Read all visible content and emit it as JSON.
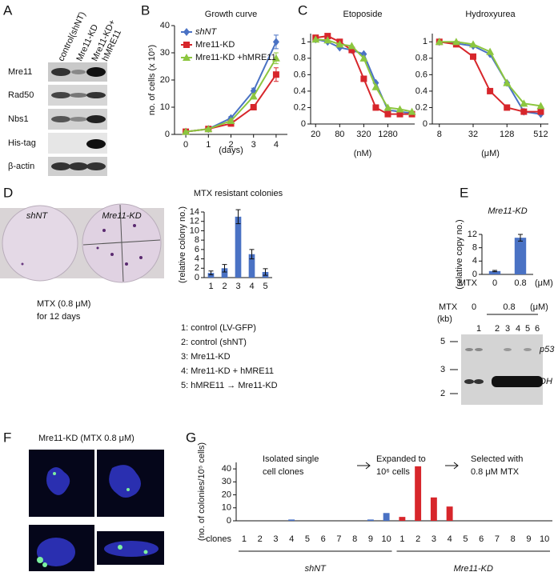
{
  "panels": [
    "A",
    "B",
    "C",
    "D",
    "E",
    "F",
    "G"
  ],
  "blot_a": {
    "columns": [
      "control(shNT)",
      "Mre11-KD",
      [
        "Mre11-KD+",
        "hMRE11"
      ]
    ],
    "rows": [
      "Mre11",
      "Rad50",
      "Nbs1",
      "His-tag",
      "β-actin"
    ]
  },
  "plates": {
    "labels": [
      "shNT",
      "Mre11-KD"
    ],
    "condition": "MTX (0.8 μM)",
    "duration": "for 12 days"
  },
  "legend_d": [
    "1: control (LV-GFP)",
    "2: control (shNT)",
    "3: Mre11-KD",
    "4: Mre11-KD + hMRE11",
    "5: hMRE11 → Mre11-KD"
  ],
  "blot_e": {
    "treatment_label": "MTX",
    "doses": [
      "0",
      "0.8"
    ],
    "unit": "(μM)",
    "size_unit": "(kb)",
    "lanes": [
      "1",
      "2",
      "3",
      "4",
      "5",
      "6"
    ],
    "sizes": [
      5,
      3,
      2
    ],
    "bands": [
      "p53",
      "DH"
    ]
  },
  "panel_f": {
    "title": "Mre11-KD (MTX 0.8 μM)"
  },
  "panel_g": {
    "steps": [
      [
        "Isolated single",
        "cell clones"
      ],
      [
        "Expanded to",
        "10⁶ cells"
      ],
      [
        "Selected with",
        "0.8 μM MTX"
      ]
    ]
  },
  "chart_data": [
    {
      "type": "line",
      "title": "Growth curve",
      "xlabel": "(days)",
      "ylabel": "no. of cells (x 10⁵)",
      "x": [
        0,
        1,
        2,
        3,
        4
      ],
      "xlim": [
        -0.5,
        4.5
      ],
      "xticks": [
        0,
        1,
        2,
        3,
        4
      ],
      "ylim": [
        0,
        40
      ],
      "yticks": [
        0,
        10,
        20,
        30,
        40
      ],
      "legend": "upper left",
      "series": [
        {
          "name": "shNT",
          "color": "#4a72c4",
          "marker": "diamond",
          "values": [
            1,
            2,
            6,
            16,
            34
          ],
          "errors": [
            0.3,
            0.3,
            0.6,
            1,
            2.5
          ]
        },
        {
          "name": "Mre11-KD",
          "color": "#d7262b",
          "marker": "square",
          "values": [
            1,
            2,
            4,
            10,
            22
          ],
          "errors": [
            0.3,
            0.3,
            0.5,
            1,
            2.5
          ]
        },
        {
          "name": "Mre11-KD +hMRE11",
          "color": "#8cc63f",
          "marker": "triangle",
          "values": [
            1,
            2,
            5,
            14,
            28
          ],
          "errors": [
            0.3,
            0.3,
            0.5,
            1,
            2
          ]
        }
      ]
    },
    {
      "type": "line",
      "title": "Etoposide",
      "xlabel": "(nM)",
      "log_x": true,
      "x": [
        20,
        40,
        80,
        160,
        320,
        640,
        1280,
        2560,
        5120
      ],
      "xlim": [
        15,
        6000
      ],
      "xticks": [
        20,
        80,
        320,
        1280
      ],
      "ylim": [
        0,
        1.1
      ],
      "yticks": [
        0,
        0.2,
        0.4,
        0.6,
        0.8,
        1
      ],
      "series": [
        {
          "name": "shNT",
          "color": "#4a72c4",
          "marker": "diamond",
          "values": [
            1.03,
            1.0,
            0.93,
            0.9,
            0.85,
            0.5,
            0.17,
            0.15,
            0.13
          ]
        },
        {
          "name": "Mre11-KD",
          "color": "#d7262b",
          "marker": "square",
          "values": [
            1.05,
            1.07,
            1.0,
            0.9,
            0.55,
            0.2,
            0.12,
            0.12,
            0.12
          ]
        },
        {
          "name": "Mre11-KD +hMRE11",
          "color": "#8cc63f",
          "marker": "triangle",
          "values": [
            1.03,
            1.02,
            0.97,
            0.95,
            0.8,
            0.45,
            0.2,
            0.18,
            0.15
          ]
        }
      ]
    },
    {
      "type": "line",
      "title": "Hydroxyurea",
      "xlabel": "(μM)",
      "log_x": true,
      "x": [
        8,
        16,
        32,
        64,
        128,
        256,
        512
      ],
      "xlim": [
        6,
        700
      ],
      "xticks": [
        8,
        32,
        128,
        512
      ],
      "ylim": [
        0,
        1.1
      ],
      "yticks": [
        0,
        0.2,
        0.4,
        0.6,
        0.8,
        1
      ],
      "series": [
        {
          "name": "shNT",
          "color": "#4a72c4",
          "marker": "diamond",
          "values": [
            1.0,
            0.98,
            0.95,
            0.85,
            0.5,
            0.15,
            0.12
          ]
        },
        {
          "name": "Mre11-KD",
          "color": "#d7262b",
          "marker": "square",
          "values": [
            1.0,
            0.97,
            0.82,
            0.4,
            0.2,
            0.15,
            0.15
          ]
        },
        {
          "name": "Mre11-KD +hMRE11",
          "color": "#8cc63f",
          "marker": "triangle",
          "values": [
            1.0,
            1.0,
            0.97,
            0.88,
            0.5,
            0.25,
            0.22
          ]
        }
      ]
    },
    {
      "type": "bar",
      "title": "MTX resistant colonies",
      "ylabel": "(relative colony no.)",
      "categories": [
        "1",
        "2",
        "3",
        "4",
        "5"
      ],
      "values": [
        1,
        2,
        13,
        5,
        1.2
      ],
      "errors": [
        0.4,
        0.8,
        1.5,
        1,
        0.7
      ],
      "color": "#4a72c4",
      "ylim": [
        0,
        14
      ],
      "yticks": [
        0,
        2,
        4,
        6,
        8,
        10,
        12,
        14
      ]
    },
    {
      "type": "bar",
      "title": "Mre11-KD",
      "ylabel": "(relative copy no.)",
      "xlabel": "MTX",
      "xunit": "(μM)",
      "categories": [
        "0",
        "0.8"
      ],
      "values": [
        1,
        11
      ],
      "errors": [
        0.2,
        1
      ],
      "color": "#4a72c4",
      "ylim": [
        0,
        12
      ],
      "yticks": [
        0,
        4,
        8,
        12
      ]
    },
    {
      "type": "bar",
      "ylabel": "(no. of colonies/10⁵ cells)",
      "xlabel": "clones",
      "categories": [
        "1",
        "2",
        "3",
        "4",
        "5",
        "6",
        "7",
        "8",
        "9",
        "10",
        "1",
        "2",
        "3",
        "4",
        "5",
        "6",
        "7",
        "8",
        "9",
        "10"
      ],
      "ylim": [
        0,
        45
      ],
      "yticks": [
        0,
        10,
        20,
        30,
        40
      ],
      "series": [
        {
          "name": "shNT",
          "color": "#4a72c4",
          "values": [
            0,
            0,
            0,
            1,
            0,
            0,
            0,
            0,
            1,
            6,
            null,
            null,
            null,
            null,
            null,
            null,
            null,
            null,
            null,
            null
          ]
        },
        {
          "name": "Mre11-KD",
          "color": "#d7262b",
          "values": [
            null,
            null,
            null,
            null,
            null,
            null,
            null,
            null,
            null,
            null,
            3,
            42,
            18,
            11,
            0,
            0,
            0,
            0,
            0,
            0
          ]
        }
      ]
    }
  ]
}
